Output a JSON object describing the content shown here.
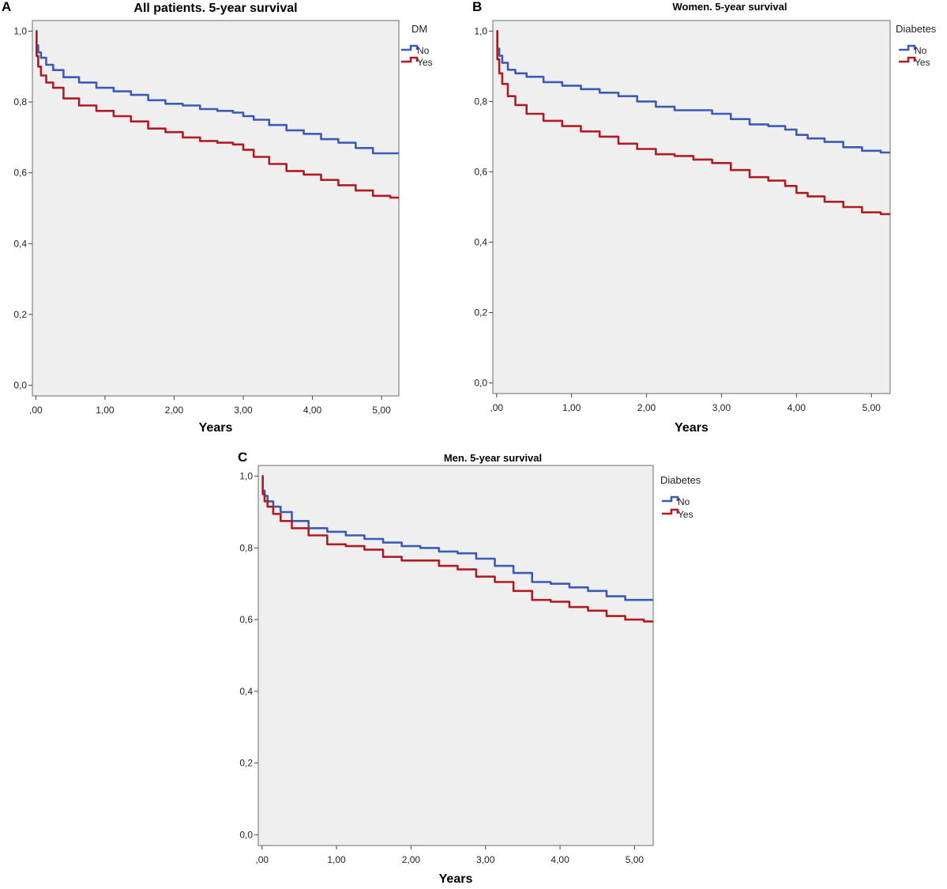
{
  "colors": {
    "no": "#3c5bb4",
    "yes": "#b01c24",
    "plot_bg": "#efefef",
    "frame": "#6b6b6b"
  },
  "chart_data": [
    {
      "panel": "A",
      "type": "line",
      "title": "All patients. 5-year survival",
      "xlabel": "Years",
      "ylabel": "",
      "xlim": [
        -0.05,
        5.25
      ],
      "ylim": [
        -0.03,
        1.03
      ],
      "x_ticks": [
        0,
        1,
        2,
        3,
        4,
        5
      ],
      "x_tick_labels": [
        ",00",
        "1,00",
        "2,00",
        "3,00",
        "4,00",
        "5,00"
      ],
      "y_ticks": [
        0,
        0.2,
        0.4,
        0.6,
        0.8,
        1.0
      ],
      "y_tick_labels": [
        "0,0",
        "0,2",
        "0,4",
        "0,6",
        "0,8",
        "1,0"
      ],
      "grid": false,
      "legend": {
        "title": "DM",
        "placement": "right"
      },
      "series": [
        {
          "name": "No",
          "color_key": "no",
          "x": [
            0,
            0.02,
            0.05,
            0.1,
            0.2,
            0.3,
            0.5,
            0.75,
            1.0,
            1.25,
            1.5,
            1.75,
            2.0,
            2.25,
            2.5,
            2.75,
            2.95,
            3.05,
            3.25,
            3.5,
            3.75,
            4.0,
            4.25,
            4.5,
            4.75,
            5.0,
            5.25
          ],
          "values": [
            1.0,
            0.96,
            0.94,
            0.925,
            0.905,
            0.89,
            0.87,
            0.855,
            0.84,
            0.83,
            0.82,
            0.805,
            0.795,
            0.79,
            0.78,
            0.775,
            0.77,
            0.76,
            0.75,
            0.735,
            0.72,
            0.71,
            0.695,
            0.685,
            0.67,
            0.655,
            0.655
          ]
        },
        {
          "name": "Yes",
          "color_key": "yes",
          "x": [
            0,
            0.02,
            0.05,
            0.1,
            0.2,
            0.3,
            0.5,
            0.75,
            1.0,
            1.25,
            1.5,
            1.75,
            2.0,
            2.25,
            2.5,
            2.75,
            2.95,
            3.05,
            3.25,
            3.5,
            3.75,
            4.0,
            4.25,
            4.5,
            4.75,
            5.0,
            5.25
          ],
          "values": [
            1.0,
            0.93,
            0.9,
            0.875,
            0.855,
            0.84,
            0.81,
            0.79,
            0.775,
            0.76,
            0.745,
            0.725,
            0.715,
            0.7,
            0.69,
            0.685,
            0.68,
            0.665,
            0.645,
            0.625,
            0.605,
            0.595,
            0.58,
            0.565,
            0.55,
            0.535,
            0.53
          ]
        }
      ]
    },
    {
      "panel": "B",
      "type": "line",
      "title": "Women. 5-year survival",
      "xlabel": "Years",
      "ylabel": "",
      "xlim": [
        -0.05,
        5.25
      ],
      "ylim": [
        -0.03,
        1.03
      ],
      "x_ticks": [
        0,
        1,
        2,
        3,
        4,
        5
      ],
      "x_tick_labels": [
        ",00",
        "1,00",
        "2,00",
        "3,00",
        "4,00",
        "5,00"
      ],
      "y_ticks": [
        0,
        0.2,
        0.4,
        0.6,
        0.8,
        1.0
      ],
      "y_tick_labels": [
        "0,0",
        "0,2",
        "0,4",
        "0,6",
        "0,8",
        "1,0"
      ],
      "grid": false,
      "legend": {
        "title": "Diabetes",
        "placement": "right"
      },
      "series": [
        {
          "name": "No",
          "color_key": "no",
          "x": [
            0,
            0.02,
            0.05,
            0.1,
            0.2,
            0.3,
            0.5,
            0.75,
            1.0,
            1.25,
            1.5,
            1.75,
            2.0,
            2.25,
            2.5,
            2.75,
            3.0,
            3.25,
            3.5,
            3.75,
            3.95,
            4.05,
            4.25,
            4.5,
            4.75,
            5.0,
            5.25
          ],
          "values": [
            1.0,
            0.95,
            0.93,
            0.91,
            0.89,
            0.88,
            0.87,
            0.855,
            0.845,
            0.835,
            0.825,
            0.815,
            0.8,
            0.785,
            0.775,
            0.775,
            0.765,
            0.75,
            0.735,
            0.73,
            0.72,
            0.705,
            0.695,
            0.685,
            0.67,
            0.66,
            0.655
          ]
        },
        {
          "name": "Yes",
          "color_key": "yes",
          "x": [
            0,
            0.02,
            0.05,
            0.1,
            0.2,
            0.3,
            0.5,
            0.75,
            1.0,
            1.25,
            1.5,
            1.75,
            2.0,
            2.25,
            2.5,
            2.75,
            3.0,
            3.25,
            3.5,
            3.75,
            3.95,
            4.05,
            4.25,
            4.5,
            4.75,
            5.0,
            5.25
          ],
          "values": [
            1.0,
            0.92,
            0.88,
            0.85,
            0.815,
            0.79,
            0.765,
            0.745,
            0.73,
            0.715,
            0.7,
            0.68,
            0.665,
            0.65,
            0.645,
            0.635,
            0.625,
            0.605,
            0.585,
            0.575,
            0.56,
            0.54,
            0.53,
            0.515,
            0.5,
            0.485,
            0.48
          ]
        }
      ]
    },
    {
      "panel": "C",
      "type": "line",
      "title": "Men. 5-year survival",
      "xlabel": "Years",
      "ylabel": "",
      "xlim": [
        -0.05,
        5.25
      ],
      "ylim": [
        -0.03,
        1.03
      ],
      "x_ticks": [
        0,
        1,
        2,
        3,
        4,
        5
      ],
      "x_tick_labels": [
        ",00",
        "1,00",
        "2,00",
        "3,00",
        "4,00",
        "5,00"
      ],
      "y_ticks": [
        0,
        0.2,
        0.4,
        0.6,
        0.8,
        1.0
      ],
      "y_tick_labels": [
        "0,0",
        "0,2",
        "0,4",
        "0,6",
        "0,8",
        "1,0"
      ],
      "grid": false,
      "legend": {
        "title": "Diabetes",
        "placement": "right"
      },
      "series": [
        {
          "name": "No",
          "color_key": "no",
          "x": [
            0,
            0.02,
            0.05,
            0.1,
            0.2,
            0.3,
            0.5,
            0.75,
            1.0,
            1.25,
            1.5,
            1.75,
            2.0,
            2.25,
            2.5,
            2.75,
            3.0,
            3.25,
            3.5,
            3.75,
            4.0,
            4.25,
            4.5,
            4.75,
            5.0,
            5.25
          ],
          "values": [
            1.0,
            0.96,
            0.945,
            0.93,
            0.915,
            0.9,
            0.875,
            0.855,
            0.845,
            0.835,
            0.825,
            0.815,
            0.805,
            0.8,
            0.79,
            0.785,
            0.77,
            0.75,
            0.73,
            0.705,
            0.7,
            0.69,
            0.68,
            0.665,
            0.655,
            0.655
          ]
        },
        {
          "name": "Yes",
          "color_key": "yes",
          "x": [
            0,
            0.02,
            0.05,
            0.1,
            0.2,
            0.3,
            0.5,
            0.75,
            1.0,
            1.25,
            1.5,
            1.75,
            2.0,
            2.25,
            2.5,
            2.75,
            3.0,
            3.25,
            3.5,
            3.75,
            4.0,
            4.25,
            4.5,
            4.75,
            5.0,
            5.25
          ],
          "values": [
            1.0,
            0.95,
            0.93,
            0.915,
            0.895,
            0.875,
            0.855,
            0.835,
            0.81,
            0.805,
            0.795,
            0.775,
            0.765,
            0.765,
            0.75,
            0.74,
            0.72,
            0.705,
            0.68,
            0.655,
            0.65,
            0.635,
            0.625,
            0.61,
            0.6,
            0.595
          ]
        }
      ]
    }
  ]
}
